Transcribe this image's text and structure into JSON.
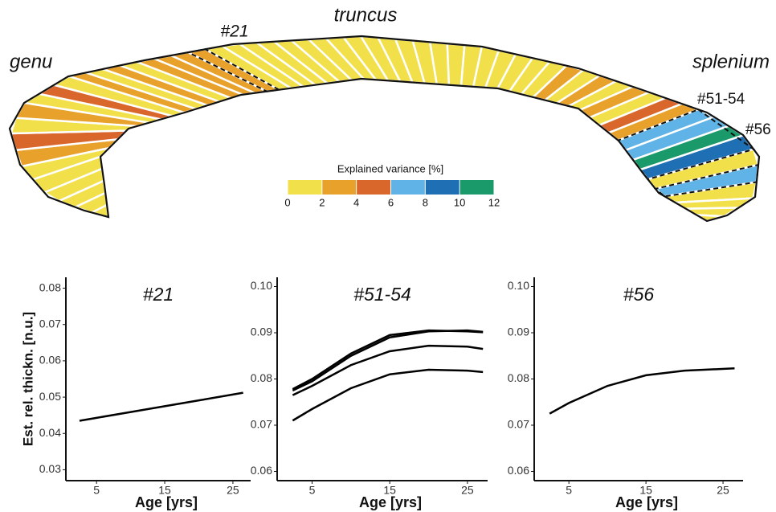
{
  "diagram": {
    "labels": {
      "genu": "genu",
      "truncus": "truncus",
      "splenium": "splenium",
      "seg21": "#21",
      "seg51": "#51-54",
      "seg56": "#56"
    },
    "colorbar": {
      "title": "Explained variance [%]",
      "ticks": [
        0,
        2,
        4,
        6,
        8,
        10,
        12
      ],
      "colors": [
        "#f2e04a",
        "#e8a12a",
        "#d9662a",
        "#5fb3e6",
        "#1f6fb5",
        "#1a9a6a"
      ]
    },
    "segment_colors": [
      "#f2e04a",
      "#f2e04a",
      "#f2e04a",
      "#f2e04a",
      "#f2e04a",
      "#f2e04a",
      "#e8a12a",
      "#d9662a",
      "#f2e04a",
      "#e8a12a",
      "#f2e04a",
      "#d9662a",
      "#f2e04a",
      "#e8a12a",
      "#f2e04a",
      "#e8a12a",
      "#f2e04a",
      "#e8a12a",
      "#e8a12a",
      "#e8a12a",
      "#e8a12a",
      "#f2e04a",
      "#f2e04a",
      "#f2e04a",
      "#f2e04a",
      "#f2e04a",
      "#f2e04a",
      "#f2e04a",
      "#f2e04a",
      "#f2e04a",
      "#f2e04a",
      "#f2e04a",
      "#f2e04a",
      "#f2e04a",
      "#f2e04a",
      "#f2e04a",
      "#f2e04a",
      "#f2e04a",
      "#f2e04a",
      "#f2e04a",
      "#f2e04a",
      "#f2e04a",
      "#e8a12a",
      "#f2e04a",
      "#e8a12a",
      "#f2e04a",
      "#e8a12a",
      "#f2e04a",
      "#d9662a",
      "#e8a12a",
      "#5fb3e6",
      "#5fb3e6",
      "#1a9a6a",
      "#1f6fb5",
      "#f2e04a",
      "#5fb3e6",
      "#f2e04a",
      "#f2e04a",
      "#f2e04a",
      "#f2e04a"
    ]
  },
  "chart_data": [
    {
      "type": "line",
      "title": "#21",
      "ylabel": "Est. rel. thickn. [n.u.]",
      "xlabel": "Age [yrs]",
      "xlim": [
        0.5,
        27.6
      ],
      "xticks": [
        5,
        15,
        25
      ],
      "ylim": [
        0.027,
        0.083
      ],
      "yticks": [
        0.03,
        0.04,
        0.05,
        0.06,
        0.07,
        0.08
      ],
      "x": [
        2.5,
        5,
        10,
        15,
        20,
        26.5
      ],
      "series": [
        {
          "color": "#000000",
          "values": [
            0.0435,
            0.0443,
            0.0459,
            0.0475,
            0.0491,
            0.0512
          ]
        }
      ]
    },
    {
      "type": "line",
      "title": "#51-54",
      "xlabel": "Age [yrs]",
      "xlim": [
        0.5,
        27.6
      ],
      "xticks": [
        5,
        15,
        25
      ],
      "ylim": [
        0.058,
        0.102
      ],
      "yticks": [
        0.06,
        0.07,
        0.08,
        0.09,
        {
          "value": 0.1,
          "label": "0.10"
        }
      ],
      "x": [
        2.5,
        5,
        10,
        15,
        20,
        25,
        27
      ],
      "series": [
        {
          "color": "#000000",
          "values": [
            0.0778,
            0.08,
            0.0855,
            0.0895,
            0.0905,
            0.0903,
            0.0901
          ]
        },
        {
          "color": "#000000",
          "values": [
            0.0775,
            0.0795,
            0.085,
            0.089,
            0.0903,
            0.0905,
            0.0902
          ]
        },
        {
          "color": "#000000",
          "values": [
            0.0765,
            0.0785,
            0.083,
            0.086,
            0.0872,
            0.087,
            0.0865
          ]
        },
        {
          "color": "#000000",
          "values": [
            0.071,
            0.0735,
            0.078,
            0.081,
            0.082,
            0.0818,
            0.0815
          ]
        }
      ]
    },
    {
      "type": "line",
      "title": "#56",
      "xlabel": "Age [yrs]",
      "xlim": [
        0.5,
        27.6
      ],
      "xticks": [
        5,
        15,
        25
      ],
      "ylim": [
        0.058,
        0.102
      ],
      "yticks": [
        0.06,
        0.07,
        0.08,
        0.09,
        {
          "value": 0.1,
          "label": "0.10"
        }
      ],
      "x": [
        2.5,
        5,
        10,
        15,
        20,
        26.5
      ],
      "series": [
        {
          "color": "#000000",
          "values": [
            0.0725,
            0.0748,
            0.0785,
            0.0808,
            0.0818,
            0.0823
          ]
        }
      ]
    }
  ]
}
